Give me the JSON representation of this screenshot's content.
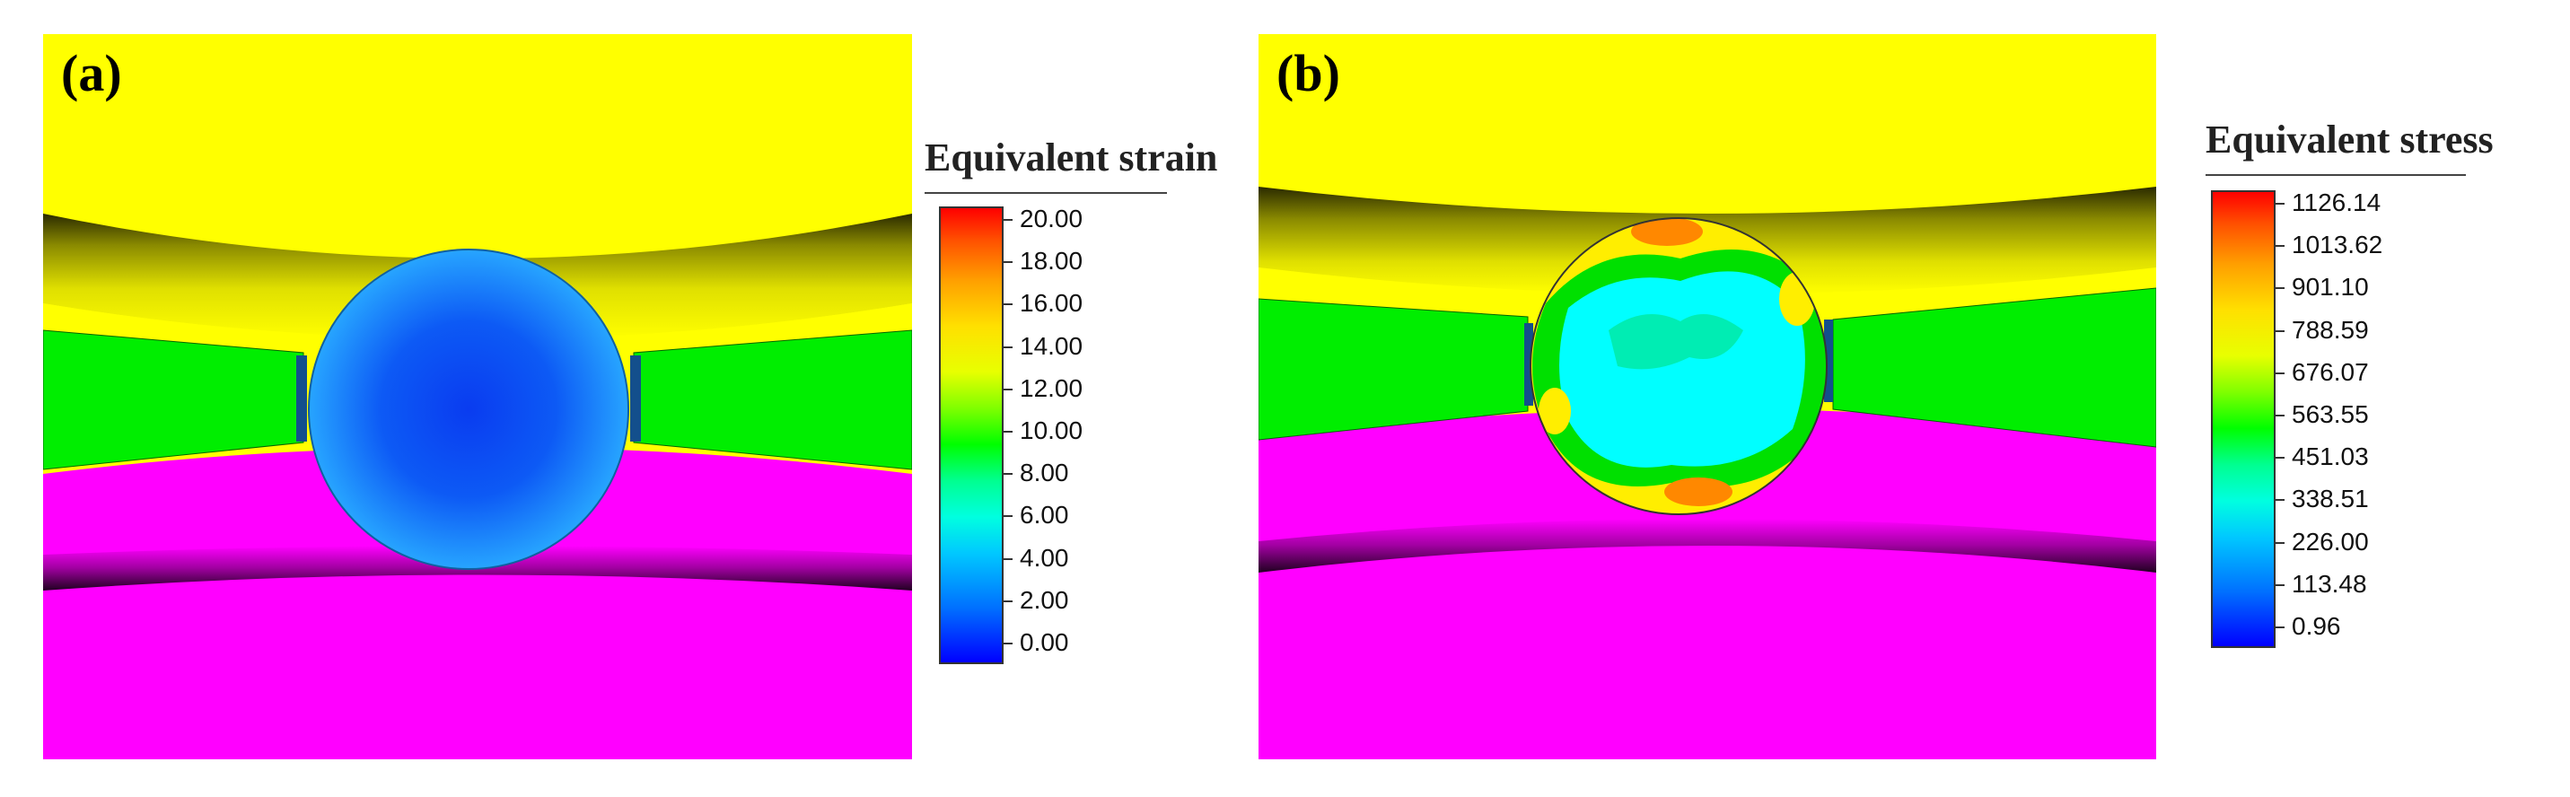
{
  "panel_a": {
    "label": "(a)"
  },
  "panel_b": {
    "label": "(b)"
  },
  "legend_a": {
    "title": "Equivalent strain",
    "ticks": [
      "20.00",
      "18.00",
      "16.00",
      "14.00",
      "12.00",
      "10.00",
      "8.00",
      "6.00",
      "4.00",
      "2.00",
      "0.00"
    ]
  },
  "legend_b": {
    "title": "Equivalent stress",
    "ticks": [
      "1126.14",
      "1013.62",
      "901.10",
      "788.59",
      "676.07",
      "563.55",
      "451.03",
      "338.51",
      "226.00",
      "113.48",
      "0.96"
    ]
  },
  "colors": {
    "outer_ring": "#ffff00",
    "cage": "#00ee00",
    "inner_ring": "#ff00ff",
    "ball_a": "#1a8cff",
    "ball_b_base": "#00ffff"
  }
}
